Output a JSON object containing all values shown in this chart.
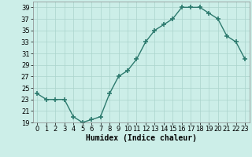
{
  "x": [
    0,
    1,
    2,
    3,
    4,
    5,
    6,
    7,
    8,
    9,
    10,
    11,
    12,
    13,
    14,
    15,
    16,
    17,
    18,
    19,
    20,
    21,
    22,
    23
  ],
  "y": [
    24,
    23,
    23,
    23,
    20,
    19,
    19.5,
    20,
    24,
    27,
    28,
    30,
    33,
    35,
    36,
    37,
    39,
    39,
    39,
    38,
    37,
    34,
    33,
    30
  ],
  "line_color": "#2d7a6e",
  "marker": "+",
  "bg_color": "#cceee8",
  "grid_color": "#aad4cc",
  "xlabel": "Humidex (Indice chaleur)",
  "ylim": [
    19,
    40
  ],
  "xlim": [
    -0.5,
    23.5
  ],
  "yticks": [
    19,
    21,
    23,
    25,
    27,
    29,
    31,
    33,
    35,
    37,
    39
  ],
  "xticks": [
    0,
    1,
    2,
    3,
    4,
    5,
    6,
    7,
    8,
    9,
    10,
    11,
    12,
    13,
    14,
    15,
    16,
    17,
    18,
    19,
    20,
    21,
    22,
    23
  ]
}
